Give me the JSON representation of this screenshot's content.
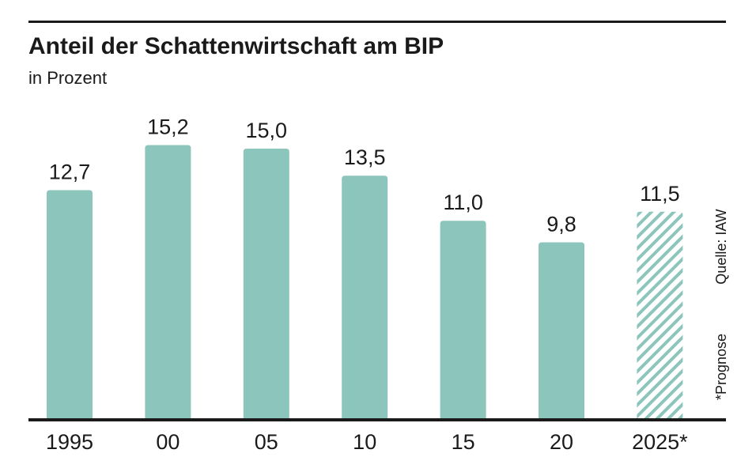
{
  "chart_data": {
    "type": "bar",
    "title": "Anteil der Schattenwirtschaft am BIP",
    "subtitle": "in Prozent",
    "categories": [
      "1995",
      "00",
      "05",
      "10",
      "15",
      "20",
      "2025*"
    ],
    "values": [
      12.7,
      15.2,
      15.0,
      13.5,
      11.0,
      9.8,
      11.5
    ],
    "value_labels": [
      "12,7",
      "15,2",
      "15,0",
      "13,5",
      "11,0",
      "9,8",
      "11,5"
    ],
    "hatched": [
      false,
      false,
      false,
      false,
      false,
      false,
      true
    ],
    "color": "#8cc5bb",
    "source": "Quelle: IAW",
    "note": "*Prognose"
  }
}
